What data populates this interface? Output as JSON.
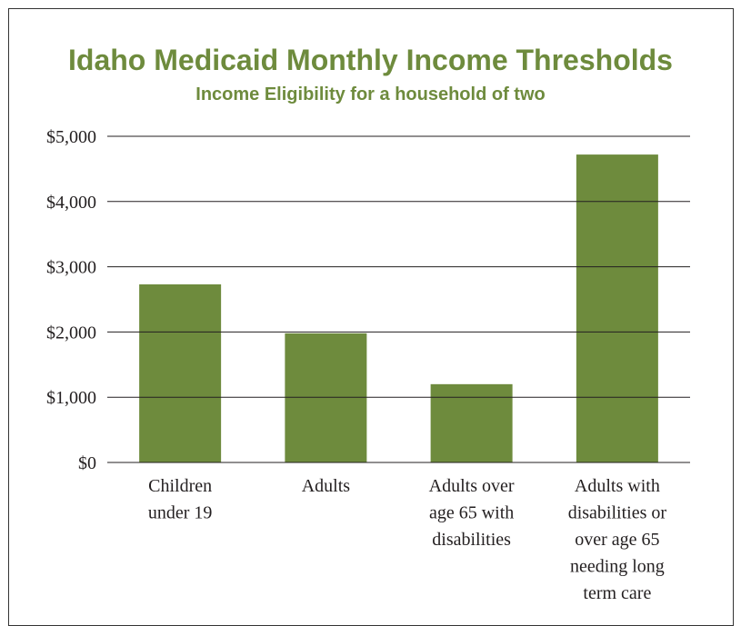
{
  "chart_data": {
    "type": "bar",
    "title": "Idaho Medicaid Monthly Income Thresholds",
    "subtitle": "Income Eligibility for a household of two",
    "categories": [
      [
        "Children",
        "under 19"
      ],
      [
        "Adults"
      ],
      [
        "Adults over",
        "age 65 with",
        "disabilities"
      ],
      [
        "Adults with",
        "disabilities or",
        "over age 65",
        "needing long",
        "term care"
      ]
    ],
    "values": [
      2730,
      1980,
      1200,
      4720
    ],
    "yticks": [
      0,
      1000,
      2000,
      3000,
      4000,
      5000
    ],
    "ytick_labels": [
      "$0",
      "$1,000",
      "$2,000",
      "$3,000",
      "$4,000",
      "$5,000"
    ],
    "ylim": [
      0,
      5000
    ],
    "grid": true,
    "colors": {
      "bar": "#6e8b3d",
      "title": "#6e8b3d",
      "grid": "#231f20"
    }
  }
}
